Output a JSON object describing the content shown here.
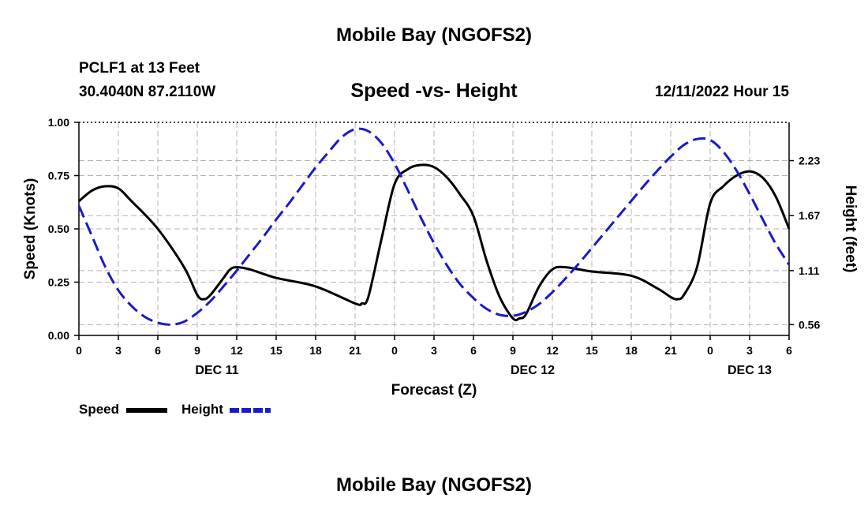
{
  "header": {
    "title": "Mobile Bay (NGOFS2)",
    "station": "PCLF1 at 13 Feet",
    "coords": "30.4040N  87.2110W",
    "subtitle": "Speed -vs- Height",
    "timestamp": "12/11/2022 Hour 15"
  },
  "footer": {
    "title": "Mobile Bay (NGOFS2)"
  },
  "legend": {
    "speed_label": "Speed",
    "height_label": "Height"
  },
  "colors": {
    "speed": "#000000",
    "height": "#1a1acc",
    "grid": "#b3b3b3"
  },
  "chart_data": {
    "type": "line",
    "title": "Speed -vs- Height",
    "xlabel": "Forecast (Z)",
    "ylabel": "Speed (Knots)",
    "y2label": "Height (feet)",
    "xlim": [
      0,
      54
    ],
    "ylim": [
      0,
      1.0
    ],
    "y2lim": [
      0.45,
      2.62
    ],
    "x_ticks": [
      0,
      3,
      6,
      9,
      12,
      15,
      18,
      21,
      24,
      27,
      30,
      33,
      36,
      39,
      42,
      45,
      48,
      51,
      54
    ],
    "x_tick_labels": [
      "0",
      "3",
      "6",
      "9",
      "12",
      "15",
      "18",
      "21",
      "0",
      "3",
      "6",
      "9",
      "12",
      "15",
      "18",
      "21",
      "0",
      "3",
      "6"
    ],
    "y_ticks": [
      0,
      0.25,
      0.5,
      0.75,
      1.0
    ],
    "y_tick_labels": [
      "0.00",
      "0.25",
      "0.50",
      "0.75",
      "1.00"
    ],
    "y2_ticks": [
      0.56,
      1.11,
      1.67,
      2.23
    ],
    "y2_tick_labels": [
      "0.56",
      "1.11",
      "1.67",
      "2.23"
    ],
    "day_labels": [
      {
        "x": 10.5,
        "label": "DEC 11"
      },
      {
        "x": 34.5,
        "label": "DEC 12"
      },
      {
        "x": 51,
        "label": "DEC 13"
      }
    ],
    "series": [
      {
        "name": "Speed",
        "axis": "left",
        "style": "solid",
        "x": [
          0,
          1,
          2,
          3,
          4,
          6,
          8,
          9,
          9.5,
          10,
          11,
          11.5,
          12,
          13,
          15,
          18,
          21,
          21.5,
          22,
          23,
          24,
          25,
          26,
          27,
          28,
          29,
          30,
          31,
          32,
          33,
          33.5,
          34,
          35,
          36,
          37,
          39,
          42,
          44,
          45,
          45.5,
          46,
          47,
          48,
          49,
          50,
          51,
          52,
          53,
          54
        ],
        "values": [
          0.63,
          0.68,
          0.7,
          0.69,
          0.63,
          0.5,
          0.32,
          0.19,
          0.17,
          0.19,
          0.27,
          0.31,
          0.32,
          0.31,
          0.27,
          0.23,
          0.15,
          0.15,
          0.18,
          0.45,
          0.71,
          0.78,
          0.8,
          0.79,
          0.74,
          0.66,
          0.56,
          0.35,
          0.18,
          0.08,
          0.08,
          0.1,
          0.23,
          0.31,
          0.32,
          0.3,
          0.28,
          0.22,
          0.18,
          0.17,
          0.19,
          0.32,
          0.62,
          0.7,
          0.75,
          0.77,
          0.74,
          0.65,
          0.5
        ]
      },
      {
        "name": "Height",
        "axis": "right",
        "style": "dashed",
        "x": [
          0,
          1,
          2,
          3,
          4,
          5,
          6,
          7,
          8,
          9,
          10,
          11,
          12,
          13,
          14,
          15,
          16,
          17,
          18,
          19,
          20,
          21,
          22,
          23,
          24,
          25,
          26,
          27,
          28,
          29,
          30,
          31,
          32,
          33,
          34,
          35,
          36,
          37,
          38,
          39,
          40,
          41,
          42,
          43,
          44,
          45,
          46,
          47,
          48,
          49,
          50,
          51,
          52,
          53,
          54
        ],
        "values": [
          1.77,
          1.46,
          1.15,
          0.91,
          0.75,
          0.64,
          0.58,
          0.56,
          0.59,
          0.68,
          0.8,
          0.95,
          1.11,
          1.28,
          1.45,
          1.63,
          1.8,
          1.98,
          2.16,
          2.32,
          2.47,
          2.55,
          2.53,
          2.41,
          2.2,
          1.93,
          1.65,
          1.39,
          1.16,
          0.97,
          0.83,
          0.72,
          0.66,
          0.65,
          0.69,
          0.77,
          0.89,
          1.03,
          1.18,
          1.34,
          1.5,
          1.66,
          1.82,
          1.98,
          2.13,
          2.27,
          2.39,
          2.45,
          2.44,
          2.32,
          2.13,
          1.89,
          1.63,
          1.38,
          1.17
        ]
      }
    ]
  }
}
